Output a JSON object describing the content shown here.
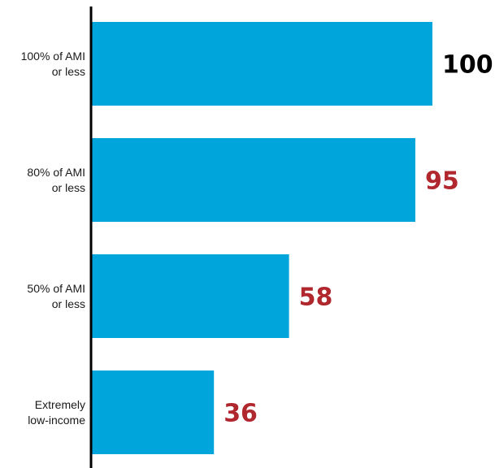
{
  "chart_data": {
    "type": "bar",
    "orientation": "horizontal",
    "categories": [
      [
        "100% of AMI",
        "or less"
      ],
      [
        "80% of AMI",
        "or less"
      ],
      [
        "50% of AMI",
        "or less"
      ],
      [
        "Extremely",
        "low-income"
      ]
    ],
    "values": [
      100,
      95,
      58,
      36
    ],
    "value_labels": [
      "100",
      "95",
      "58",
      "36"
    ],
    "xlim": [
      0,
      100
    ],
    "grid": false,
    "legend": "none",
    "title": "",
    "xlabel": "",
    "ylabel": ""
  },
  "colors": {
    "bar": "#00a5dc",
    "axis": "#000000",
    "highlight_label": "#000000",
    "value_label": "#b0272d"
  }
}
